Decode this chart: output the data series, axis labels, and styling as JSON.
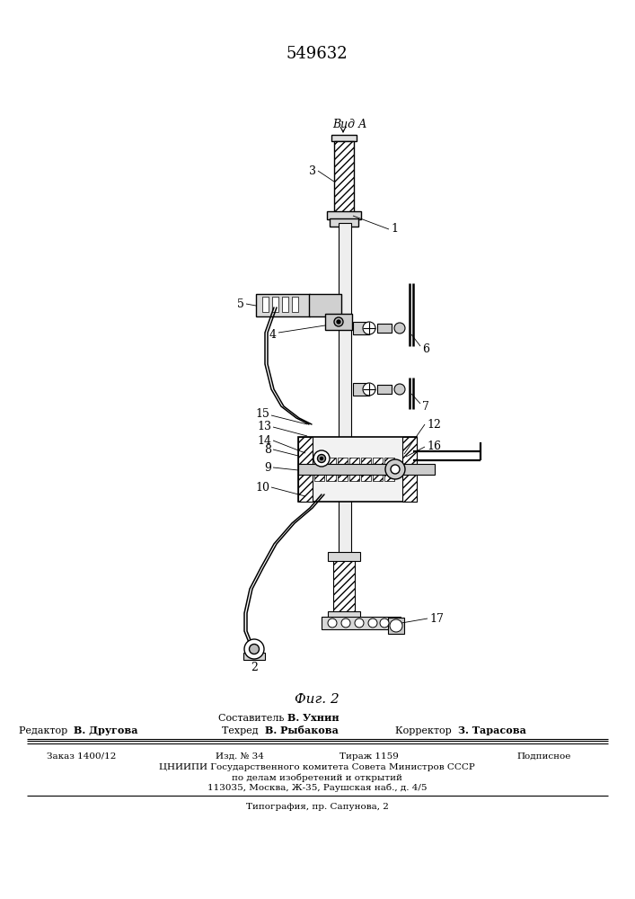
{
  "bg_color": "#ffffff",
  "title": "549632",
  "fig_caption": "Фиг. 2",
  "view_label": "Вид А",
  "footer_compiler": "Составитель",
  "footer_compiler_name": "В. Ухнин",
  "footer_editor_label": "Редактор",
  "footer_editor_name": "В. Другова",
  "footer_tech_label": "Техред",
  "footer_tech_name": "В. Рыбакова",
  "footer_corrector_label": "Корректор",
  "footer_corrector_name": "З. Тарасова",
  "footer_order": "Заказ 1400/12",
  "footer_issue": "Изд. № 34",
  "footer_circulation": "Тираж 1159",
  "footer_subscription": "Подписное",
  "footer_org1": "ЦНИИПИ Государственного комитета Совета Министров СССР",
  "footer_org2": "по делам изобретений и открытий",
  "footer_org3": "113035, Москва, Ж-35, Раушская наб., д. 4/5",
  "footer_print": "Типография, пр. Сапунова, 2"
}
